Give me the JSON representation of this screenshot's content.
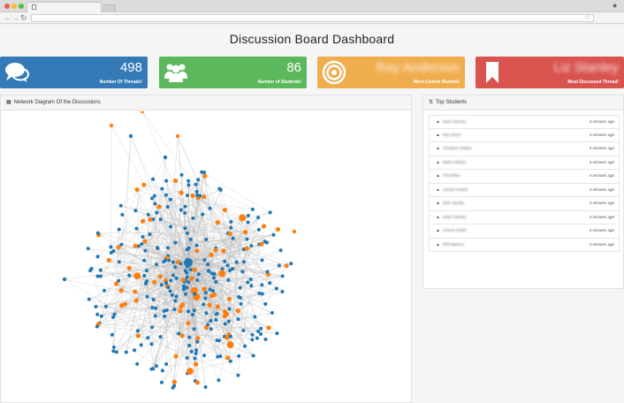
{
  "browser": {
    "tab_title": "",
    "address": ""
  },
  "dashboard": {
    "title": "Discussion Board Dashboard"
  },
  "cards": [
    {
      "value": "498",
      "label": "Number Of Threads!",
      "color": "#337ab7",
      "icon": "comments-icon"
    },
    {
      "value": "86",
      "label": "Number of Students!",
      "color": "#5cb85c",
      "icon": "users-icon"
    },
    {
      "value": "Ray Anderson",
      "label": "Most Central Student!",
      "color": "#f0ad4e",
      "icon": "bullseye-icon"
    },
    {
      "value": "Liz Stanley",
      "label": "Most Discussed Thread!",
      "color": "#d9534f",
      "icon": "bookmark-icon"
    }
  ],
  "network_panel": {
    "title": "Network Diagram Of the Discussions",
    "colors": {
      "student": "#1f77b4",
      "thread": "#ff7f0e",
      "edge": "#bbbbbb"
    }
  },
  "top_students": {
    "title": "Top Students",
    "items": [
      {
        "name": "Mark Jarman",
        "time": "4 minutes ago"
      },
      {
        "name": "Dax Reed",
        "time": "4 minutes ago"
      },
      {
        "name": "Christine Walton",
        "time": "4 minutes ago"
      },
      {
        "name": "Mark O'Brien",
        "time": "4 minutes ago"
      },
      {
        "name": "Phil Dillon",
        "time": "4 minutes ago"
      },
      {
        "name": "James Howell",
        "time": "4 minutes ago"
      },
      {
        "name": "Nick Jacobs",
        "time": "4 minutes ago"
      },
      {
        "name": "Keith Salcido",
        "time": "4 minutes ago"
      },
      {
        "name": "Franck Smith",
        "time": "4 minutes ago"
      },
      {
        "name": "Phil Watson",
        "time": "4 minutes ago"
      }
    ]
  }
}
